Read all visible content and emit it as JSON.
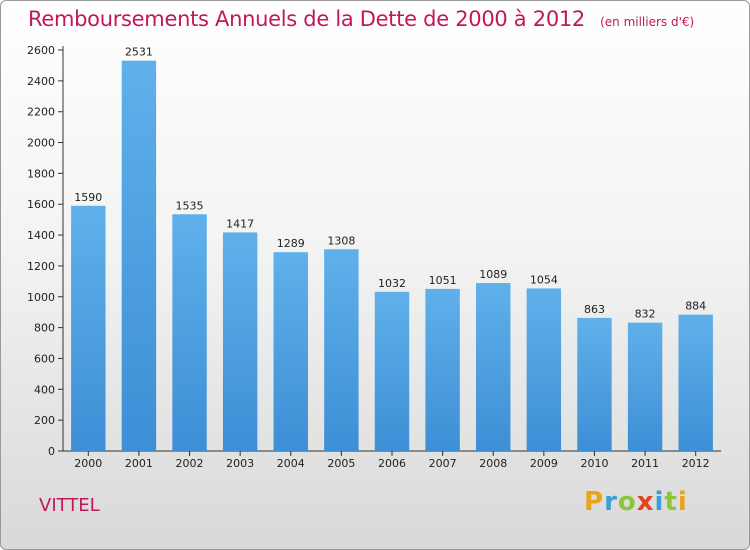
{
  "chart_data": {
    "type": "bar",
    "title": "Remboursements Annuels de la Dette de 2000 à 2012",
    "subtitle": "(en milliers d'€)",
    "categories": [
      "2000",
      "2001",
      "2002",
      "2003",
      "2004",
      "2005",
      "2006",
      "2007",
      "2008",
      "2009",
      "2010",
      "2011",
      "2012"
    ],
    "values": [
      1590,
      2531,
      1535,
      1417,
      1289,
      1308,
      1032,
      1051,
      1089,
      1054,
      863,
      832,
      884
    ],
    "ylim": [
      0,
      2600
    ],
    "yticks": [
      0,
      200,
      400,
      600,
      800,
      1000,
      1200,
      1400,
      1600,
      1800,
      2000,
      2200,
      2400,
      2600
    ],
    "grid": false,
    "xlabel": "",
    "ylabel": "",
    "bar_color": "#3d8fd6",
    "bar_color_light": "#5fb0ea"
  },
  "footer": {
    "place": "VITTEL",
    "brand_letters": [
      {
        "char": "P",
        "color": "#e8a317"
      },
      {
        "char": "r",
        "color": "#3aa0d8"
      },
      {
        "char": "o",
        "color": "#8cc43c"
      },
      {
        "char": "x",
        "color": "#e8421d"
      },
      {
        "char": "i",
        "color": "#3aa0d8"
      },
      {
        "char": "t",
        "color": "#8cc43c"
      },
      {
        "char": "i",
        "color": "#e8a317"
      }
    ]
  }
}
